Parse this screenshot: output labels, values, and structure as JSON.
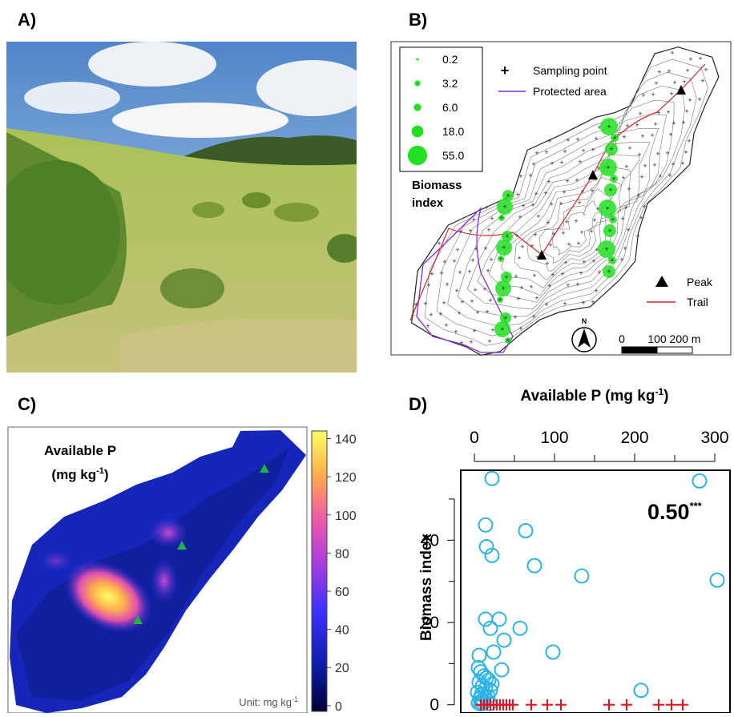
{
  "panels": {
    "a": {
      "label": "A)"
    },
    "b": {
      "label": "B)",
      "legend_sizes": [
        0.2,
        3.2,
        {
          "value": 6,
          "label": "6.0"
        },
        {
          "value": 18,
          "label": "18.0"
        },
        {
          "value": 55,
          "label": "55.0"
        }
      ],
      "legend_title": [
        "Biomass",
        "index"
      ],
      "legend_items": [
        "Sampling point",
        "Protected area",
        "Peak",
        "Trail"
      ],
      "north": "N",
      "scale_ticks": [
        0,
        100,
        {
          "value": 200,
          "label": "200 m"
        }
      ]
    },
    "c": {
      "label": "C)",
      "title": [
        "Available P",
        "(mg kg",
        "-1",
        ")"
      ],
      "unit": [
        "Unit: mg kg",
        "-1"
      ],
      "colorbar_lim": [
        -3,
        144
      ],
      "colorbar_ticks": [
        0,
        20,
        40,
        60,
        80,
        100,
        120,
        140
      ]
    }
  },
  "chart_data": {
    "type": "scatter",
    "label": "D)",
    "x_label": [
      "Available P (mg kg",
      "-1",
      ")"
    ],
    "y_label": "Biomass index",
    "xlim": [
      -17,
      320
    ],
    "xticks": [
      0,
      100,
      200,
      300
    ],
    "xminor_ticks": [
      50,
      150,
      250
    ],
    "ylim": [
      -2,
      57
    ],
    "yticks": [
      0,
      20,
      40
    ],
    "yminor_ticks": [
      10,
      30,
      50
    ],
    "annotation": {
      "text": "0.50",
      "superscript": "***"
    },
    "series": [
      {
        "color": "#2eb3e6",
        "marker": "circle",
        "x": [
          22,
          14,
          15,
          22,
          64,
          75,
          134,
          281,
          303,
          14,
          31,
          20,
          57,
          37,
          24,
          98,
          6,
          34,
          208,
          5,
          8,
          12,
          15,
          18,
          22,
          6,
          10,
          14,
          20,
          4,
          9,
          13,
          17,
          7,
          11,
          16,
          5,
          10,
          19,
          8
        ],
        "values": [
          55,
          43.7,
          38.4,
          36.3,
          42.3,
          33.8,
          31.3,
          54.4,
          30.3,
          20.8,
          20.8,
          18.6,
          18.6,
          15.7,
          12.8,
          12.8,
          12,
          8.5,
          3.5,
          9,
          8,
          7,
          6.5,
          6,
          5,
          5.5,
          4.5,
          4,
          3.5,
          3,
          2.5,
          2,
          2,
          1.5,
          1,
          1,
          0.5,
          0.5,
          0.3,
          0.2
        ]
      },
      {
        "color": "#e8101c",
        "marker": "plus",
        "x": [
          8,
          12,
          16,
          20,
          24,
          28,
          32,
          36,
          40,
          44,
          48,
          71,
          91,
          108,
          168,
          190,
          230,
          246,
          260
        ],
        "values": [
          0,
          0,
          0,
          0,
          0,
          0,
          0,
          0,
          0,
          0,
          0,
          0,
          0,
          0,
          0,
          0,
          0,
          0,
          0
        ]
      }
    ]
  }
}
